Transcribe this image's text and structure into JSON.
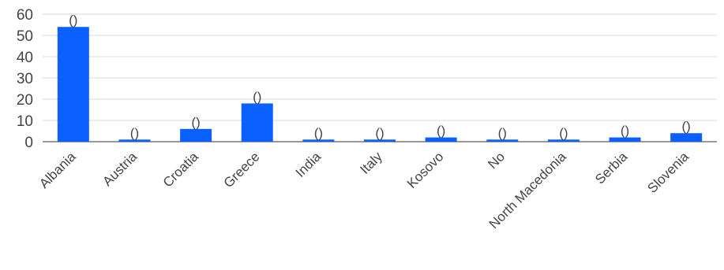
{
  "chart_data": {
    "type": "bar",
    "categories": [
      "Albania",
      "Austria",
      "Croatia",
      "Greece",
      "India",
      "Italy",
      "Kosovo",
      "No",
      "North Macedonia",
      "Serbia",
      "Slovenia"
    ],
    "values": [
      54,
      1,
      6,
      18,
      1,
      1,
      2,
      1,
      1,
      2,
      4
    ],
    "data_labels": [
      "()",
      "()",
      "()",
      "()",
      "()",
      "()",
      "()",
      "()",
      "()",
      "()",
      "()"
    ],
    "ylim": [
      0,
      60
    ],
    "yticks": [
      0,
      10,
      20,
      30,
      40,
      50,
      60
    ],
    "grid": true,
    "colors": {
      "bar": "#0b61ff",
      "grid": "#d9d9d9"
    }
  }
}
